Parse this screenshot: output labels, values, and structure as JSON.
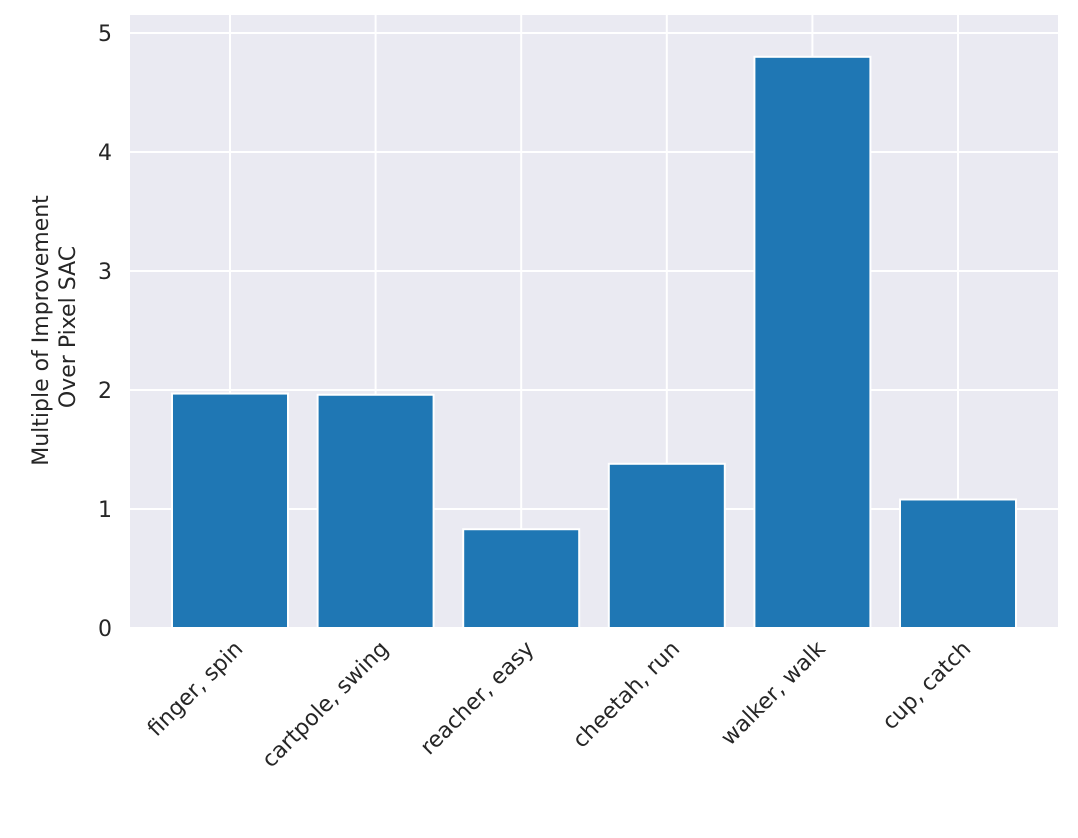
{
  "chart_data": {
    "type": "bar",
    "categories": [
      "finger, spin",
      "cartpole, swing",
      "reacher, easy",
      "cheetah, run",
      "walker, walk",
      "cup, catch"
    ],
    "values": [
      1.97,
      1.96,
      0.83,
      1.38,
      4.8,
      1.08
    ],
    "title": "",
    "xlabel": "",
    "ylabel": [
      "Multiple of Improvement",
      "Over Pixel SAC"
    ],
    "ylim": [
      0,
      5
    ],
    "yticks": [
      0,
      1,
      2,
      3,
      4,
      5
    ],
    "grid": true,
    "colors": {
      "bar": "#1f77b4",
      "plot_background": "#eaeaf2",
      "grid": "#ffffff",
      "text": "#262626"
    }
  }
}
